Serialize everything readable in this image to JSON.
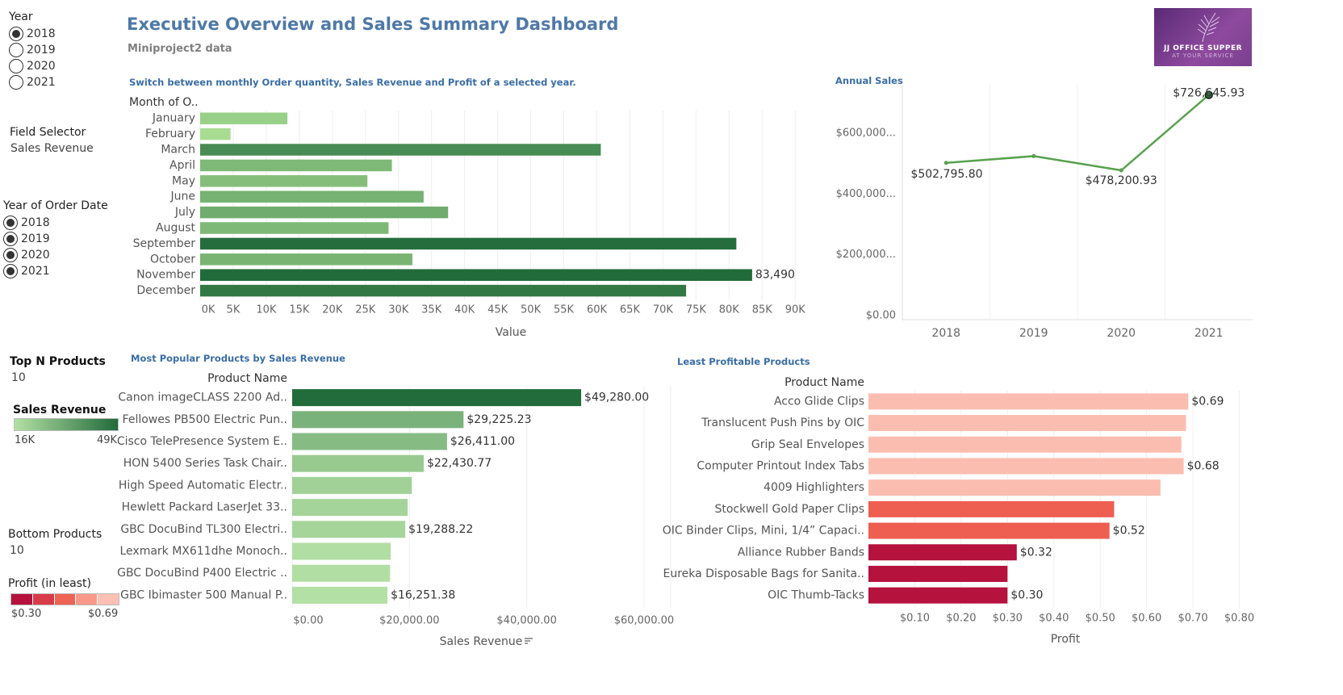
{
  "header": {
    "title": "Executive Overview and Sales Summary Dashboard",
    "subtitle": "Miniproject2 data",
    "logo_line1": "JJ OFFICE SUPPER",
    "logo_line2": "AT YOUR SERVICE"
  },
  "filters": {
    "year": {
      "title": "Year",
      "options": [
        "2018",
        "2019",
        "2020",
        "2021"
      ],
      "selected": "2018"
    },
    "field_selector": {
      "title": "Field Selector",
      "value": "Sales Revenue"
    },
    "year_of_order": {
      "title": "Year of Order Date",
      "options": [
        "2018",
        "2019",
        "2020",
        "2021"
      ],
      "selected": [
        "2018",
        "2019",
        "2020",
        "2021"
      ]
    },
    "top_n": {
      "title": "Top N Products",
      "value": "10"
    },
    "sales_legend": {
      "title": "Sales Revenue",
      "min": "16K",
      "max": "49K"
    },
    "bottom": {
      "title": "Bottom Products",
      "value": "10"
    },
    "profit_legend": {
      "title": "Profit (in least)",
      "min": "$0.30",
      "max": "$0.69",
      "swatches": [
        "#b5123e",
        "#d93b48",
        "#ef6355",
        "#f8998a",
        "#fcc0b4"
      ]
    }
  },
  "monthly_chart": {
    "section_title": "Switch between monthly Order quantity,  Sales Revenue and Profit of a selected year.",
    "header_label": "Month of O..",
    "chart_data": {
      "type": "bar",
      "orientation": "horizontal",
      "categories": [
        "January",
        "February",
        "March",
        "April",
        "May",
        "June",
        "July",
        "August",
        "September",
        "October",
        "November",
        "December"
      ],
      "values": [
        13200,
        4600,
        60600,
        29000,
        25300,
        33800,
        37500,
        28500,
        81100,
        32100,
        83490,
        73500
      ],
      "xlabel": "Value",
      "xticks": [
        "0K",
        "5K",
        "10K",
        "15K",
        "20K",
        "25K",
        "30K",
        "35K",
        "40K",
        "45K",
        "50K",
        "55K",
        "60K",
        "65K",
        "70K",
        "75K",
        "80K",
        "85K",
        "90K"
      ],
      "xlim": [
        0,
        94000
      ],
      "data_labels": {
        "10": "83,490"
      },
      "color_scale": [
        "#a8dc92",
        "#216a3a"
      ]
    }
  },
  "annual_chart": {
    "section_title": "Annual Sales",
    "chart_data": {
      "type": "line",
      "x": [
        "2018",
        "2019",
        "2020",
        "2021"
      ],
      "values": [
        502795.8,
        525000,
        478200.93,
        726645.93
      ],
      "yticks": [
        "$0.00",
        "$200,000...",
        "$400,000...",
        "$600,000..."
      ],
      "ytick_values": [
        0,
        200000,
        400000,
        600000
      ],
      "ylim": [
        0,
        760000
      ],
      "data_labels": {
        "0": "$502,795.80",
        "2": "$478,200.93",
        "3": "$726,645.93"
      },
      "color": "#59a14f"
    }
  },
  "popular_chart": {
    "section_title": "Most Popular Products by Sales Revenue",
    "header_label": "Product Name",
    "chart_data": {
      "type": "bar",
      "orientation": "horizontal",
      "categories": [
        "Canon imageCLASS 2200 Ad..",
        "Fellowes PB500 Electric Pun..",
        "Cisco TelePresence System E..",
        "HON 5400 Series Task Chair..",
        "High Speed Automatic Electr..",
        "Hewlett Packard LaserJet 33..",
        "GBC DocuBind TL300 Electri..",
        "Lexmark MX611dhe Monoch..",
        "GBC DocuBind P400 Electric ..",
        "GBC Ibimaster 500 Manual P.."
      ],
      "values": [
        49280.0,
        29225.23,
        26411.0,
        22430.77,
        20400,
        19700,
        19288.22,
        16800,
        16700,
        16251.38
      ],
      "xlabel": "Sales Revenue",
      "xticks": [
        "$0.00",
        "$20,000.00",
        "$40,000.00",
        "$60,000.00"
      ],
      "xtick_values": [
        0,
        20000,
        40000,
        60000
      ],
      "xlim": [
        0,
        64000
      ],
      "data_labels": {
        "0": "$49,280.00",
        "1": "$29,225.23",
        "2": "$26,411.00",
        "3": "$22,430.77",
        "6": "$19,288.22",
        "9": "$16,251.38"
      },
      "color_scale": [
        "#b3e0a4",
        "#226b3b"
      ]
    }
  },
  "least_chart": {
    "section_title": "Least Profitable Products",
    "header_label": "Product Name",
    "chart_data": {
      "type": "bar",
      "orientation": "horizontal",
      "categories": [
        "Acco Glide Clips",
        "Translucent Push Pins by OIC",
        "Grip Seal Envelopes",
        "Computer Printout Index Tabs",
        "4009 Highlighters",
        "Stockwell Gold Paper Clips",
        "OIC Binder Clips, Mini, 1/4” Capaci..",
        "Alliance Rubber Bands",
        "Eureka Disposable Bags for Sanita..",
        "OIC Thumb-Tacks"
      ],
      "values": [
        0.69,
        0.685,
        0.675,
        0.68,
        0.63,
        0.53,
        0.52,
        0.32,
        0.3,
        0.3
      ],
      "colors": [
        "#fcbdb1",
        "#fcbdb1",
        "#fcbdb1",
        "#fcbdb1",
        "#fcbdb1",
        "#ee5e51",
        "#ee5e51",
        "#b5123e",
        "#b5123e",
        "#b5123e"
      ],
      "xlabel": "Profit",
      "xticks": [
        "$0.10",
        "$0.20",
        "$0.30",
        "$0.40",
        "$0.50",
        "$0.60",
        "$0.70",
        "$0.80"
      ],
      "xtick_values": [
        0.1,
        0.2,
        0.3,
        0.4,
        0.5,
        0.6,
        0.7,
        0.8
      ],
      "xlim": [
        0,
        0.82
      ],
      "data_labels": {
        "0": "$0.69",
        "3": "$0.68",
        "6": "$0.52",
        "7": "$0.32",
        "9": "$0.30"
      }
    }
  }
}
